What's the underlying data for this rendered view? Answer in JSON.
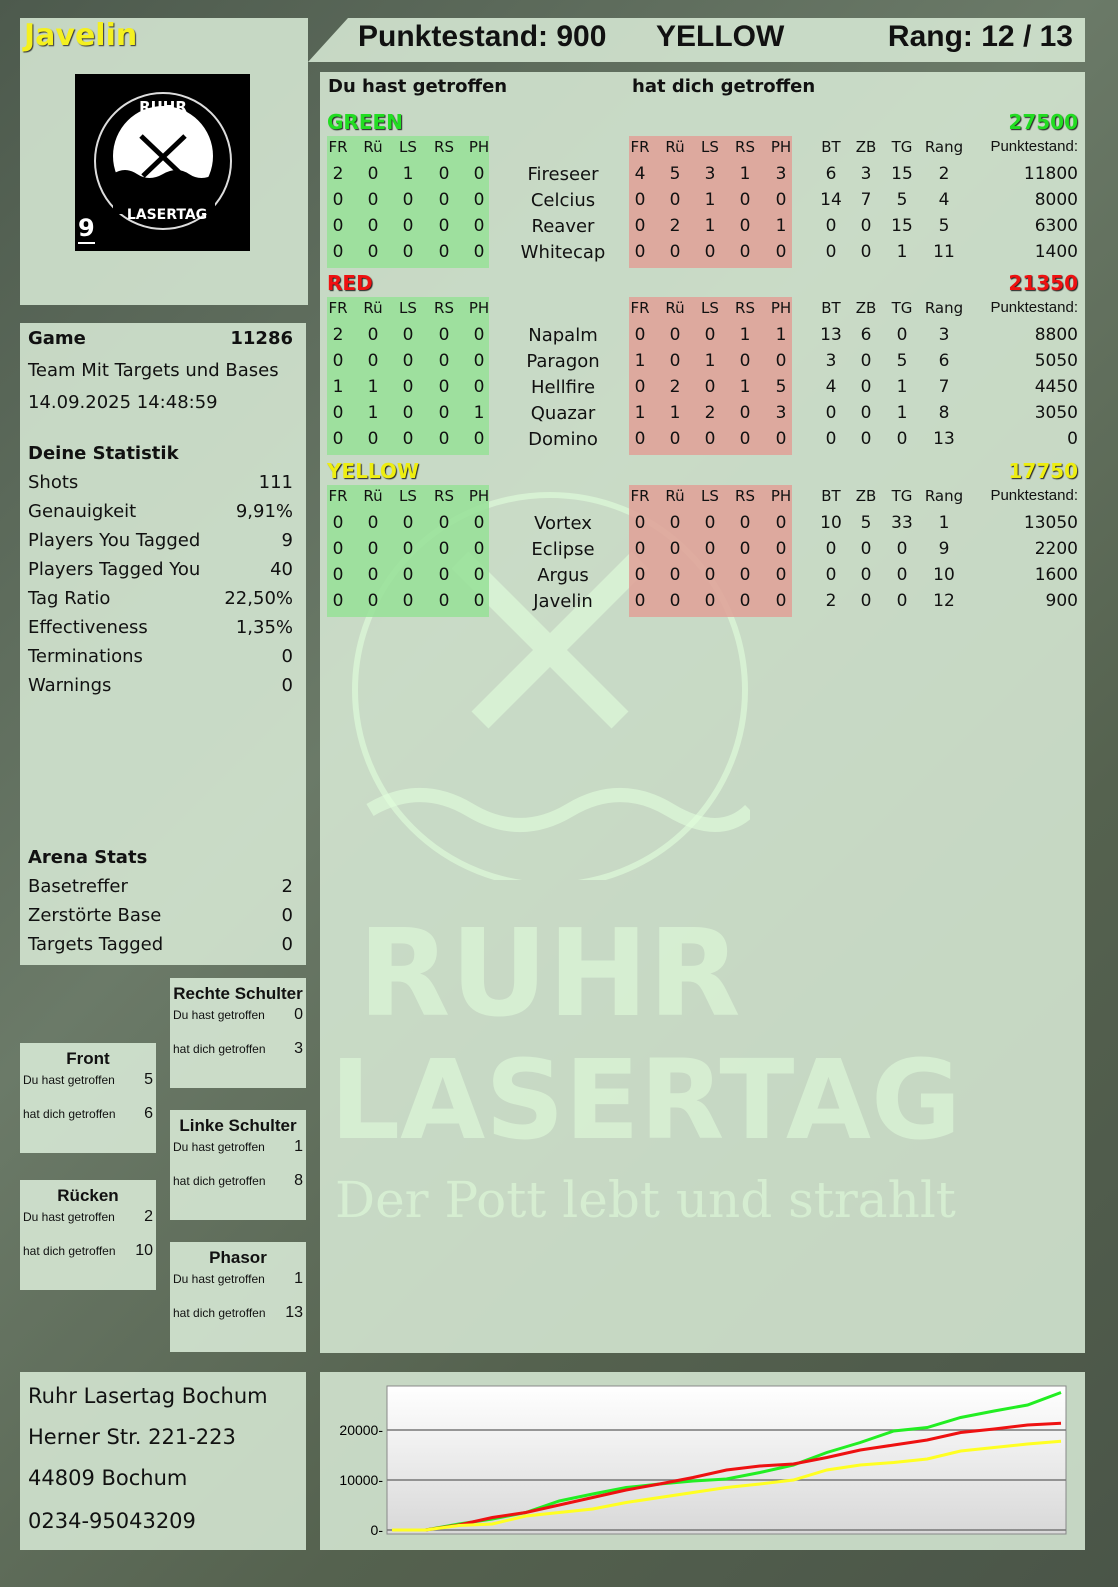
{
  "player": {
    "name": "Javelin",
    "badge_number": "9",
    "logo_text": "RUHR LASERTAG"
  },
  "header": {
    "score_label": "Punktestand: 900",
    "team": "YELLOW",
    "rank_label": "Rang: 12 / 13"
  },
  "main": {
    "you_hit": "Du hast getroffen",
    "hit_you": "hat dich getroffen",
    "col_headers": [
      "FR",
      "Rü",
      "LS",
      "RS",
      "PH"
    ],
    "stat_headers": [
      "BT",
      "ZB",
      "TG",
      "Rang",
      "Punktestand:"
    ],
    "teams": [
      {
        "name": "GREEN",
        "score": "27500",
        "color": "#22dd22",
        "players": [
          {
            "name": "Fireseer",
            "hit": [
              "2",
              "0",
              "1",
              "0",
              "0"
            ],
            "got": [
              "4",
              "5",
              "3",
              "1",
              "3"
            ],
            "stats": [
              "6",
              "3",
              "15",
              "2",
              "11800"
            ]
          },
          {
            "name": "Celcius",
            "hit": [
              "0",
              "0",
              "0",
              "0",
              "0"
            ],
            "got": [
              "0",
              "0",
              "1",
              "0",
              "0"
            ],
            "stats": [
              "14",
              "7",
              "5",
              "4",
              "8000"
            ]
          },
          {
            "name": "Reaver",
            "hit": [
              "0",
              "0",
              "0",
              "0",
              "0"
            ],
            "got": [
              "0",
              "2",
              "1",
              "0",
              "1"
            ],
            "stats": [
              "0",
              "0",
              "15",
              "5",
              "6300"
            ]
          },
          {
            "name": "Whitecap",
            "hit": [
              "0",
              "0",
              "0",
              "0",
              "0"
            ],
            "got": [
              "0",
              "0",
              "0",
              "0",
              "0"
            ],
            "stats": [
              "0",
              "0",
              "1",
              "11",
              "1400"
            ]
          }
        ]
      },
      {
        "name": "RED",
        "score": "21350",
        "color": "#ee1111",
        "players": [
          {
            "name": "Napalm",
            "hit": [
              "2",
              "0",
              "0",
              "0",
              "0"
            ],
            "got": [
              "0",
              "0",
              "0",
              "1",
              "1"
            ],
            "stats": [
              "13",
              "6",
              "0",
              "3",
              "8800"
            ]
          },
          {
            "name": "Paragon",
            "hit": [
              "0",
              "0",
              "0",
              "0",
              "0"
            ],
            "got": [
              "1",
              "0",
              "1",
              "0",
              "0"
            ],
            "stats": [
              "3",
              "0",
              "5",
              "6",
              "5050"
            ]
          },
          {
            "name": "Hellfire",
            "hit": [
              "1",
              "1",
              "0",
              "0",
              "0"
            ],
            "got": [
              "0",
              "2",
              "0",
              "1",
              "5"
            ],
            "stats": [
              "4",
              "0",
              "1",
              "7",
              "4450"
            ]
          },
          {
            "name": "Quazar",
            "hit": [
              "0",
              "1",
              "0",
              "0",
              "1"
            ],
            "got": [
              "1",
              "1",
              "2",
              "0",
              "3"
            ],
            "stats": [
              "0",
              "0",
              "1",
              "8",
              "3050"
            ]
          },
          {
            "name": "Domino",
            "hit": [
              "0",
              "0",
              "0",
              "0",
              "0"
            ],
            "got": [
              "0",
              "0",
              "0",
              "0",
              "0"
            ],
            "stats": [
              "0",
              "0",
              "0",
              "13",
              "0"
            ]
          }
        ]
      },
      {
        "name": "YELLOW",
        "score": "17750",
        "color": "#eeee11",
        "players": [
          {
            "name": "Vortex",
            "hit": [
              "0",
              "0",
              "0",
              "0",
              "0"
            ],
            "got": [
              "0",
              "0",
              "0",
              "0",
              "0"
            ],
            "stats": [
              "10",
              "5",
              "33",
              "1",
              "13050"
            ]
          },
          {
            "name": "Eclipse",
            "hit": [
              "0",
              "0",
              "0",
              "0",
              "0"
            ],
            "got": [
              "0",
              "0",
              "0",
              "0",
              "0"
            ],
            "stats": [
              "0",
              "0",
              "0",
              "9",
              "2200"
            ]
          },
          {
            "name": "Argus",
            "hit": [
              "0",
              "0",
              "0",
              "0",
              "0"
            ],
            "got": [
              "0",
              "0",
              "0",
              "0",
              "0"
            ],
            "stats": [
              "0",
              "0",
              "0",
              "10",
              "1600"
            ]
          },
          {
            "name": "Javelin",
            "hit": [
              "0",
              "0",
              "0",
              "0",
              "0"
            ],
            "got": [
              "0",
              "0",
              "0",
              "0",
              "0"
            ],
            "stats": [
              "2",
              "0",
              "0",
              "12",
              "900"
            ]
          }
        ]
      }
    ]
  },
  "game": {
    "label": "Game",
    "id": "11286",
    "mode": "Team Mit Targets und Bases",
    "datetime": "14.09.2025 14:48:59"
  },
  "stats": {
    "title": "Deine Statistik",
    "items": [
      {
        "label": "Shots",
        "value": "111"
      },
      {
        "label": "Genauigkeit",
        "value": "9,91%"
      },
      {
        "label": "Players You Tagged",
        "value": "9"
      },
      {
        "label": "Players Tagged You",
        "value": "40"
      },
      {
        "label": "Tag Ratio",
        "value": "22,50%"
      },
      {
        "label": "Effectiveness",
        "value": "1,35%"
      },
      {
        "label": "Terminations",
        "value": "0"
      },
      {
        "label": "Warnings",
        "value": "0"
      }
    ]
  },
  "arena": {
    "title": "Arena Stats",
    "items": [
      {
        "label": "Basetreffer",
        "value": "2"
      },
      {
        "label": "Zerstörte Base",
        "value": "0"
      },
      {
        "label": "Targets Tagged",
        "value": "0"
      }
    ]
  },
  "zones": [
    {
      "name": "Rechte Schulter",
      "you_hit_label": "Du hast getroffen",
      "you_hit": "0",
      "hit_you_label": "hat dich getroffen",
      "hit_you": "3"
    },
    {
      "name": "Front",
      "you_hit_label": "Du hast getroffen",
      "you_hit": "5",
      "hit_you_label": "hat dich getroffen",
      "hit_you": "6"
    },
    {
      "name": "Linke Schulter",
      "you_hit_label": "Du hast getroffen",
      "you_hit": "1",
      "hit_you_label": "hat dich getroffen",
      "hit_you": "8"
    },
    {
      "name": "Rücken",
      "you_hit_label": "Du hast getroffen",
      "you_hit": "2",
      "hit_you_label": "hat dich getroffen",
      "hit_you": "10"
    },
    {
      "name": "Phasor",
      "you_hit_label": "Du hast getroffen",
      "you_hit": "1",
      "hit_you_label": "hat dich getroffen",
      "hit_you": "13"
    }
  ],
  "address": {
    "name": "Ruhr Lasertag Bochum",
    "street": "Herner Str. 221-223",
    "city": "44809 Bochum",
    "phone": "0234-95043209"
  },
  "watermark": {
    "line1": "RUHR",
    "line2": "LASERTAG",
    "slogan": "Der Pott lebt und strahlt"
  },
  "chart_data": {
    "type": "line",
    "ylim": [
      0,
      28000
    ],
    "yticks": [
      "0",
      "10000",
      "20000"
    ],
    "grid": true,
    "x": [
      0,
      1,
      2,
      3,
      4,
      5,
      6,
      7,
      8,
      9,
      10,
      11,
      12,
      13,
      14,
      15,
      16,
      17,
      18,
      19,
      20
    ],
    "series": [
      {
        "color": "#22ee22",
        "values": [
          0,
          0,
          1200,
          2200,
          3500,
          5800,
          7200,
          8500,
          9200,
          9800,
          10200,
          11500,
          13000,
          15500,
          17500,
          19800,
          20500,
          22500,
          23800,
          25000,
          27500
        ]
      },
      {
        "color": "#ee1111",
        "values": [
          0,
          0,
          1000,
          2500,
          3500,
          5000,
          6500,
          8000,
          9200,
          10500,
          12000,
          12800,
          13200,
          14500,
          16000,
          17000,
          18000,
          19500,
          20200,
          21000,
          21350
        ]
      },
      {
        "color": "#ffff22",
        "values": [
          0,
          0,
          900,
          1200,
          2800,
          3500,
          4200,
          5500,
          6500,
          7500,
          8500,
          9200,
          10000,
          12000,
          13000,
          13500,
          14200,
          15800,
          16500,
          17200,
          17750
        ]
      }
    ]
  }
}
